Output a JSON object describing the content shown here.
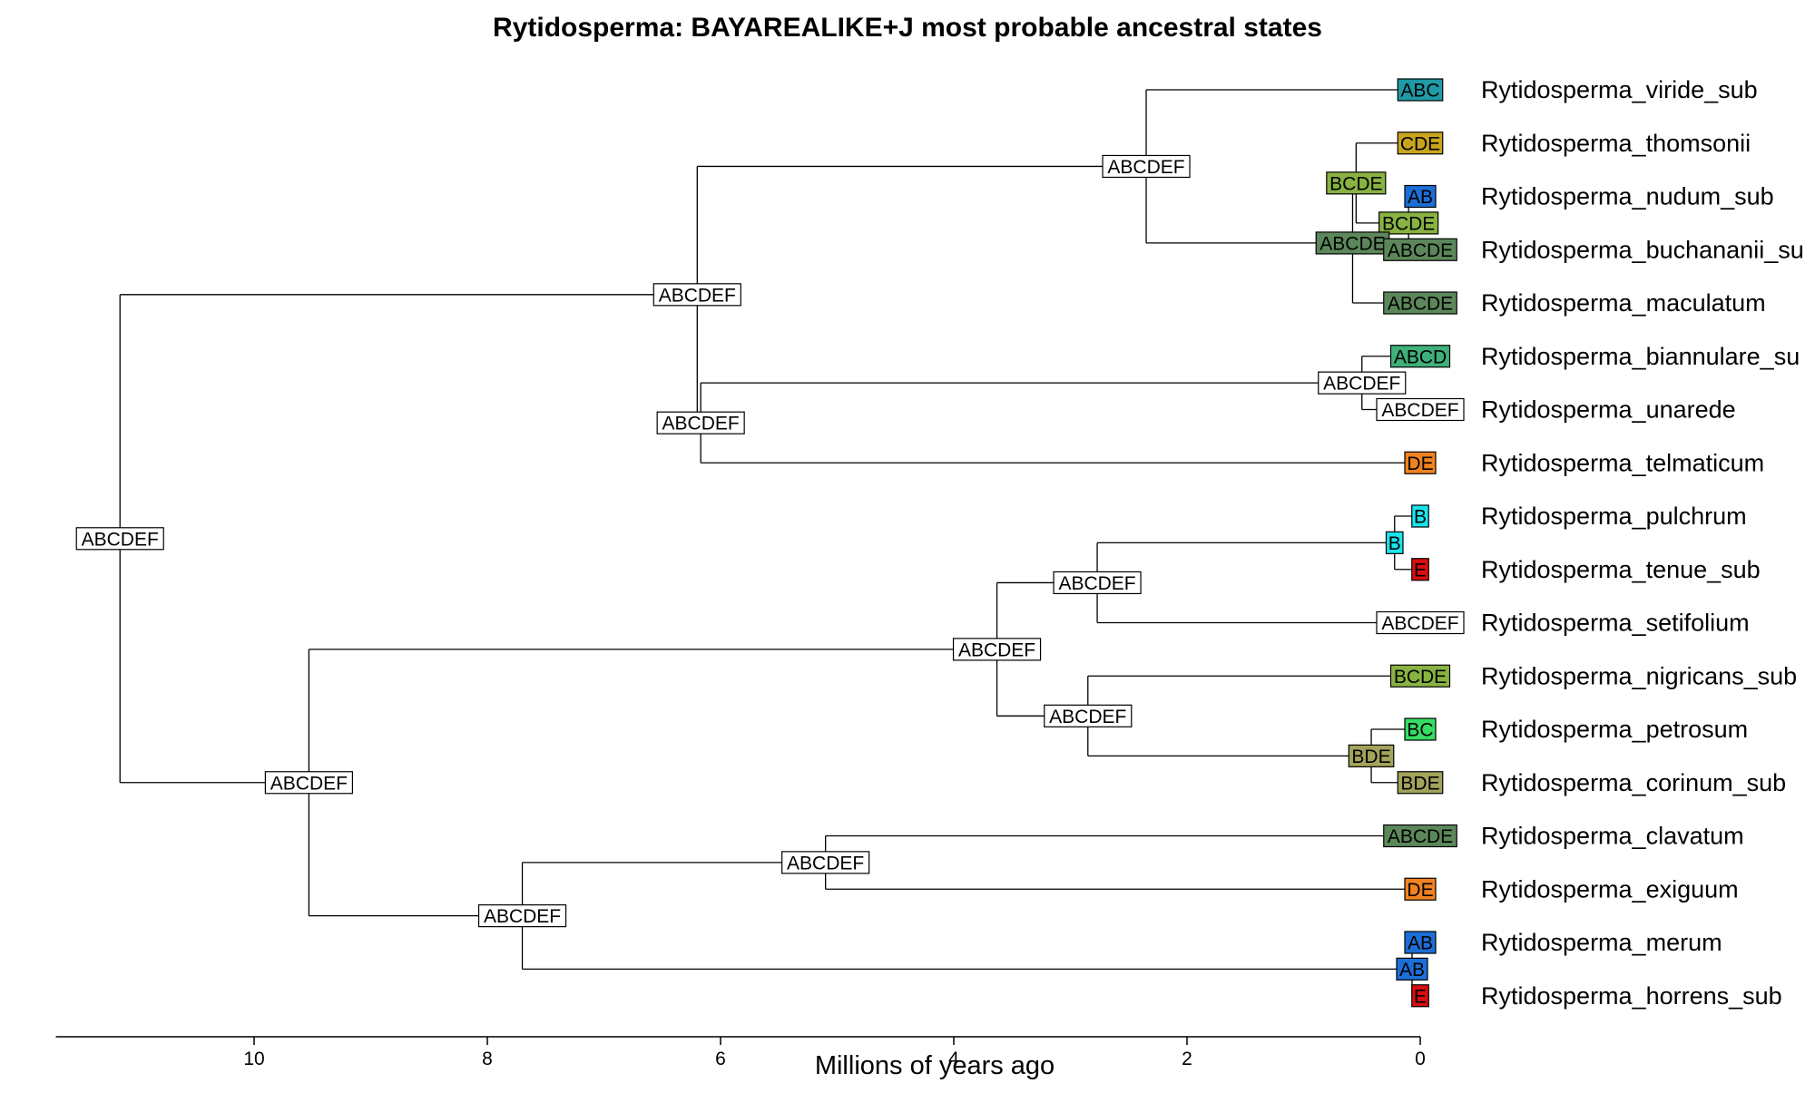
{
  "title": "Rytidosperma: BAYAREALIKE+J most probable ancestral states",
  "axis": {
    "label": "Millions of years ago",
    "ticks": [
      10,
      8,
      6,
      4,
      2,
      0
    ],
    "range": [
      11.7,
      0
    ]
  },
  "colors": {
    "ABCDEF": "#ffffff",
    "ABC": "#1f9aa6",
    "CDE": "#c8a51e",
    "BCDE": "#88b341",
    "AB": "#1d6fd8",
    "ABCDE": "#5c875a",
    "ABCD": "#3fb07a",
    "DE": "#f0821f",
    "B": "#1ae4ec",
    "E": "#d90f0f",
    "BC": "#36dd63",
    "BDE": "#a3a35c"
  },
  "tips": [
    {
      "name": "Rytidosperma_viride_sub",
      "state": "ABC"
    },
    {
      "name": "Rytidosperma_thomsonii",
      "state": "CDE"
    },
    {
      "name": "Rytidosperma_nudum_sub",
      "state": "AB"
    },
    {
      "name": "Rytidosperma_buchananii_su",
      "state": "ABCDE"
    },
    {
      "name": "Rytidosperma_maculatum",
      "state": "ABCDE"
    },
    {
      "name": "Rytidosperma_biannulare_su",
      "state": "ABCD"
    },
    {
      "name": "Rytidosperma_unarede",
      "state": "ABCDEF"
    },
    {
      "name": "Rytidosperma_telmaticum",
      "state": "DE"
    },
    {
      "name": "Rytidosperma_pulchrum",
      "state": "B"
    },
    {
      "name": "Rytidosperma_tenue_sub",
      "state": "E"
    },
    {
      "name": "Rytidosperma_setifolium",
      "state": "ABCDEF"
    },
    {
      "name": "Rytidosperma_nigricans_sub",
      "state": "BCDE"
    },
    {
      "name": "Rytidosperma_petrosum",
      "state": "BC"
    },
    {
      "name": "Rytidosperma_corinum_sub",
      "state": "BDE"
    },
    {
      "name": "Rytidosperma_clavatum",
      "state": "ABCDE"
    },
    {
      "name": "Rytidosperma_exiguum",
      "state": "DE"
    },
    {
      "name": "Rytidosperma_merum",
      "state": "AB"
    },
    {
      "name": "Rytidosperma_horrens_sub",
      "state": "E"
    }
  ],
  "nodes": [
    {
      "id": "n1",
      "age": 0.1,
      "state": "BCDE",
      "children": [
        "t2",
        "t3"
      ]
    },
    {
      "id": "n2",
      "age": 0.55,
      "state": "BCDE",
      "children": [
        "t1",
        "n1"
      ]
    },
    {
      "id": "n3",
      "age": 0.58,
      "state": "ABCDE",
      "children": [
        "n2",
        "t4"
      ]
    },
    {
      "id": "n4",
      "age": 2.35,
      "state": "ABCDEF",
      "children": [
        "t0",
        "n3"
      ]
    },
    {
      "id": "n5",
      "age": 0.5,
      "state": "ABCDEF",
      "children": [
        "t5",
        "t6"
      ]
    },
    {
      "id": "n6",
      "age": 6.17,
      "state": "ABCDEF",
      "children": [
        "n5",
        "t7"
      ]
    },
    {
      "id": "n7",
      "age": 6.2,
      "state": "ABCDEF",
      "children": [
        "n4",
        "n6"
      ]
    },
    {
      "id": "n8",
      "age": 0.22,
      "state": "B",
      "children": [
        "t8",
        "t9"
      ]
    },
    {
      "id": "n9",
      "age": 2.77,
      "state": "ABCDEF",
      "children": [
        "n8",
        "t10"
      ]
    },
    {
      "id": "n10",
      "age": 0.42,
      "state": "BDE",
      "children": [
        "t12",
        "t13"
      ]
    },
    {
      "id": "n11",
      "age": 2.85,
      "state": "ABCDEF",
      "children": [
        "t11",
        "n10"
      ]
    },
    {
      "id": "n12",
      "age": 3.63,
      "state": "ABCDEF",
      "children": [
        "n9",
        "n11"
      ]
    },
    {
      "id": "n13",
      "age": 5.1,
      "state": "ABCDEF",
      "children": [
        "t14",
        "t15"
      ]
    },
    {
      "id": "n14",
      "age": 0.07,
      "state": "AB",
      "children": [
        "t16",
        "t17"
      ]
    },
    {
      "id": "n15",
      "age": 7.7,
      "state": "ABCDEF",
      "children": [
        "n13",
        "n14"
      ]
    },
    {
      "id": "n16",
      "age": 9.53,
      "state": "ABCDEF",
      "children": [
        "n12",
        "n15"
      ]
    },
    {
      "id": "n17",
      "age": 11.15,
      "state": "ABCDEF",
      "children": [
        "n7",
        "n16"
      ]
    }
  ]
}
